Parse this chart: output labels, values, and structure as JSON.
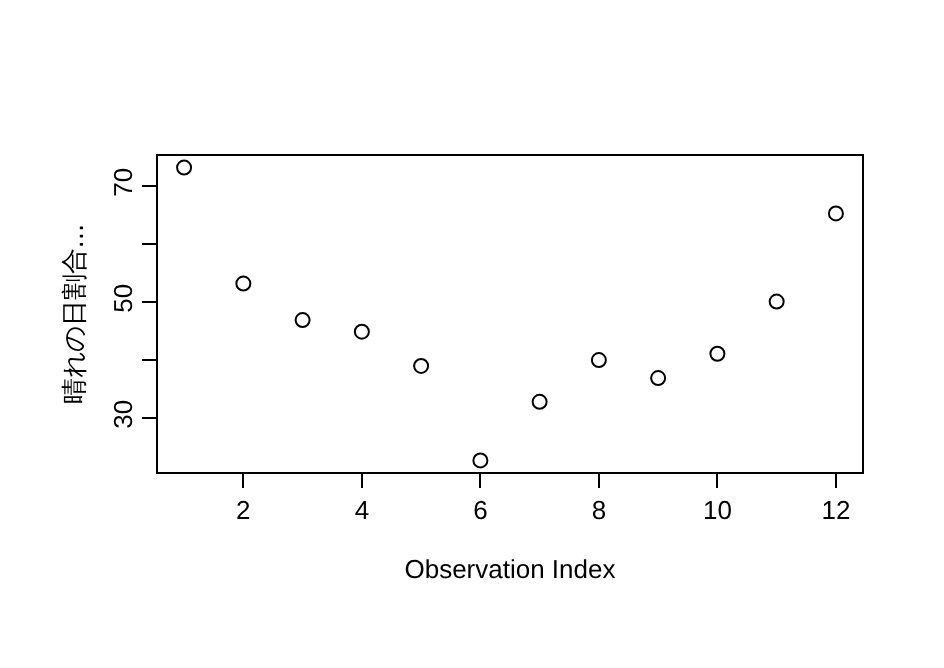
{
  "chart_data": {
    "type": "scatter",
    "xlabel": "Observation Index",
    "ylabel": "晴れの日割合...",
    "x": [
      1,
      2,
      3,
      4,
      5,
      6,
      7,
      8,
      9,
      10,
      11,
      12
    ],
    "series": [
      {
        "color": "#000000",
        "values": [
          73.2,
          53.2,
          46.9,
          44.9,
          39.0,
          22.7,
          32.8,
          40.0,
          36.9,
          41.1,
          50.1,
          65.3
        ]
      }
    ],
    "xlim": [
      0.56,
      12.44
    ],
    "ylim": [
      20.7,
      75.2
    ],
    "xticks": [
      2,
      4,
      6,
      8,
      10,
      12
    ],
    "yticks": [
      30,
      {
        "value": 40,
        "label": null
      },
      50,
      {
        "value": 60,
        "label": null
      },
      70
    ],
    "marker": "circle"
  }
}
